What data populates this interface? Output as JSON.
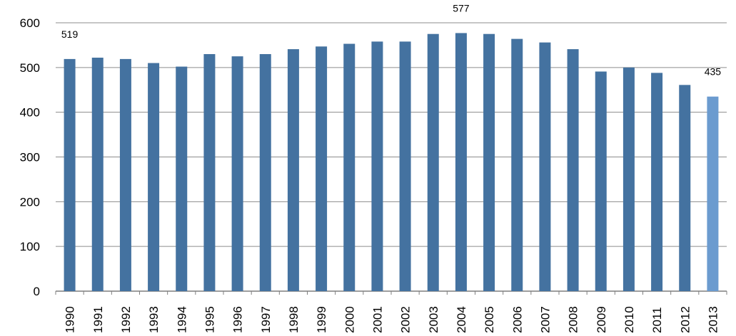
{
  "chart_data": {
    "type": "bar",
    "title": "",
    "xlabel": "",
    "ylabel": "",
    "ylim": [
      0,
      600
    ],
    "yticks": [
      0,
      100,
      200,
      300,
      400,
      500,
      600
    ],
    "grid": true,
    "categories": [
      "1990",
      "1991",
      "1992",
      "1993",
      "1994",
      "1995",
      "1996",
      "1997",
      "1998",
      "1999",
      "2000",
      "2001",
      "2002",
      "2003",
      "2004",
      "2005",
      "2006",
      "2007",
      "2008",
      "2009",
      "2010",
      "2011",
      "2012",
      "2013"
    ],
    "series": [
      {
        "values": [
          519,
          522,
          519,
          510,
          502,
          530,
          525,
          530,
          541,
          547,
          553,
          558,
          558,
          575,
          577,
          575,
          564,
          556,
          541,
          491,
          500,
          488,
          461,
          435
        ]
      }
    ],
    "data_labels": [
      {
        "category": "1990",
        "text": "519"
      },
      {
        "category": "2004",
        "text": "577"
      },
      {
        "category": "2013",
        "text": "435"
      }
    ],
    "colors": {
      "bar": "#4472A0",
      "highlight_bar": "#6B9BCF",
      "grid": "#8C8C8C",
      "axis": "#7F7F7F"
    },
    "highlight_category": "2013"
  }
}
